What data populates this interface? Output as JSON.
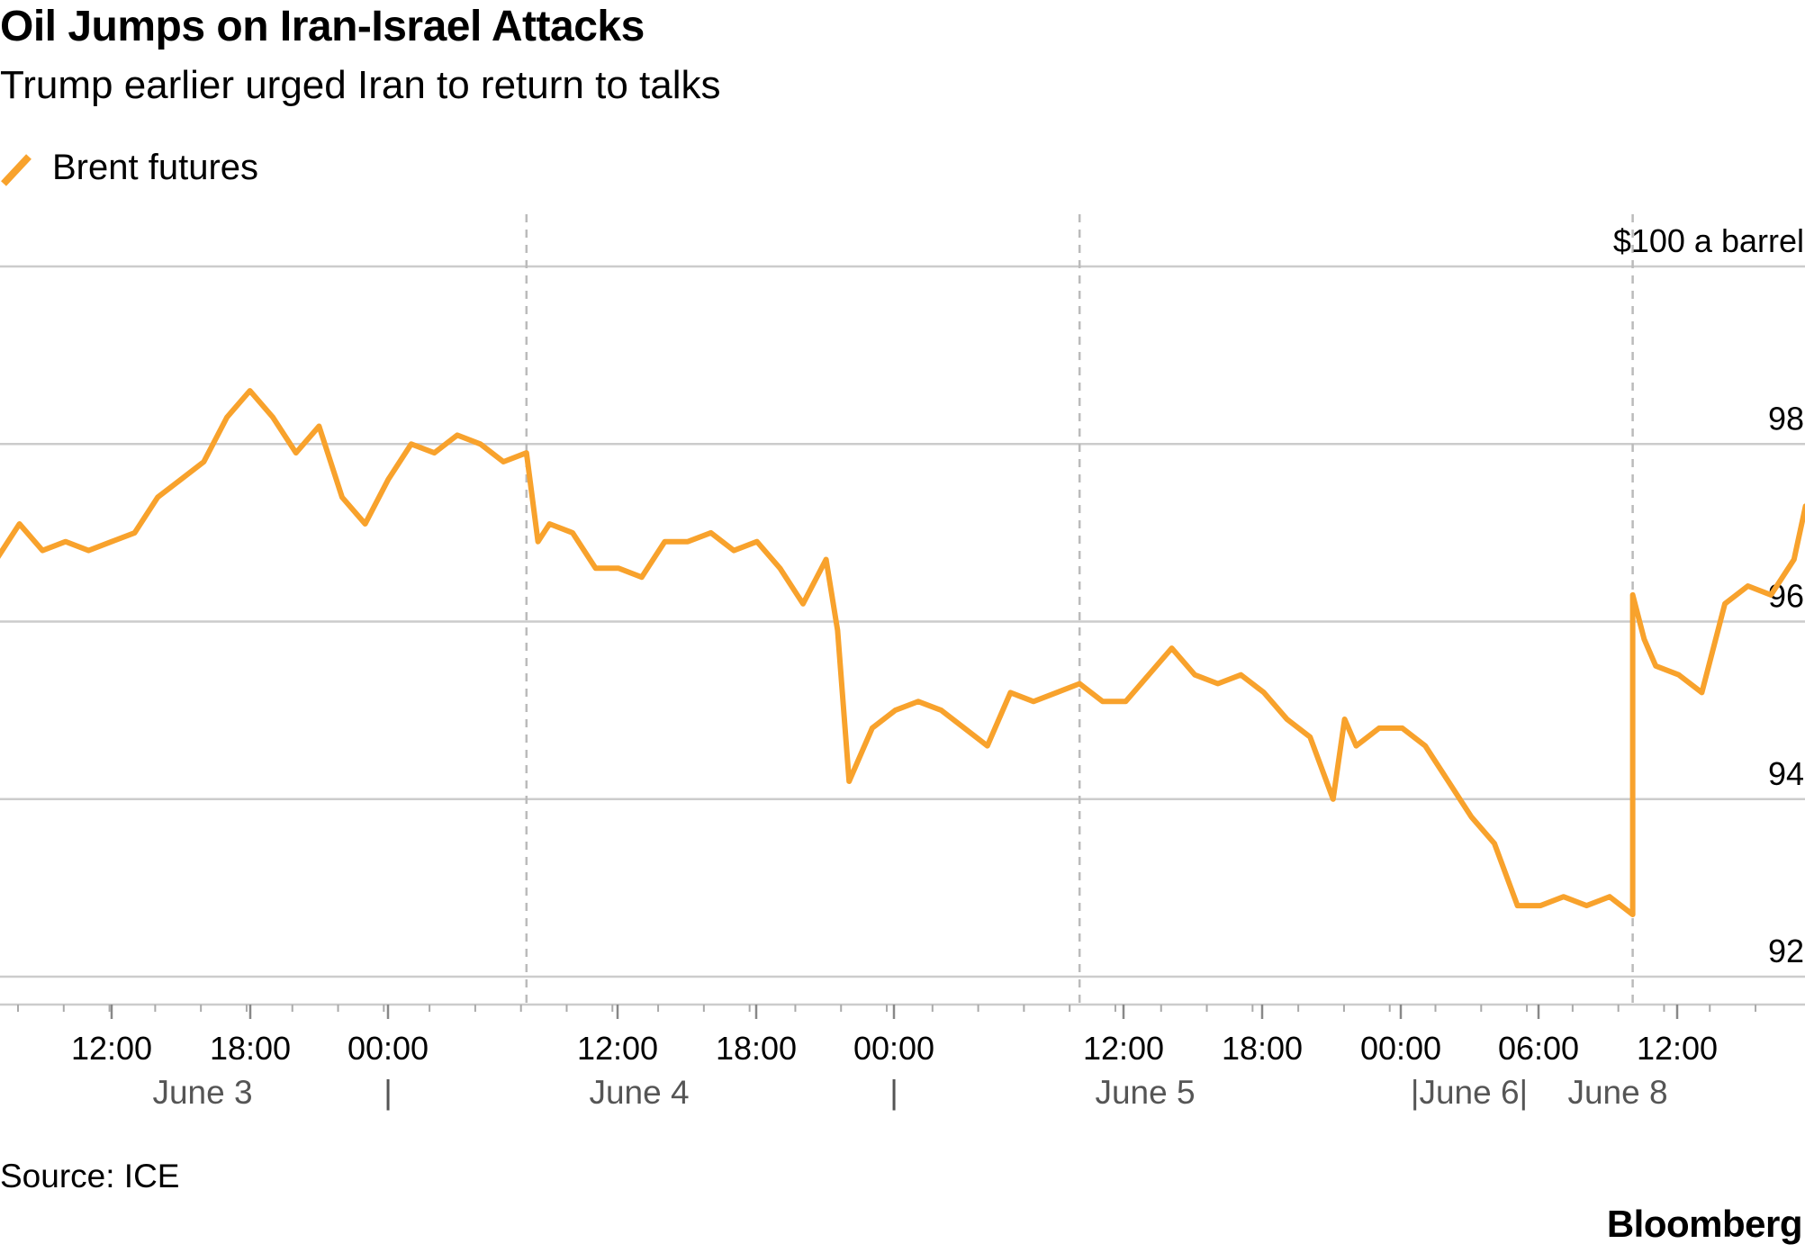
{
  "title": "Oil Jumps on Iran-Israel Attacks",
  "subtitle": "Trump earlier urged Iran to return to talks",
  "source": "Source: ICE",
  "brand": "Bloomberg",
  "colors": {
    "series": "#f8a22c",
    "grid": "#cccccc",
    "day_divider": "#bbbbbb",
    "date_label": "#555555",
    "text": "#000000"
  },
  "chart_data": {
    "type": "line",
    "series": [
      {
        "name": "Brent futures",
        "unit_label": "$100 a barrel",
        "points": [
          [
            "June 3 07:00",
            96.7
          ],
          [
            "June 3 08:00",
            97.1
          ],
          [
            "June 3 09:00",
            96.8
          ],
          [
            "June 3 10:00",
            96.9
          ],
          [
            "June 3 11:00",
            96.8
          ],
          [
            "June 3 12:00",
            96.9
          ],
          [
            "June 3 13:00",
            97.0
          ],
          [
            "June 3 14:00",
            97.4
          ],
          [
            "June 3 15:00",
            97.6
          ],
          [
            "June 3 16:00",
            97.8
          ],
          [
            "June 3 17:00",
            98.3
          ],
          [
            "June 3 18:00",
            98.6
          ],
          [
            "June 3 19:00",
            98.3
          ],
          [
            "June 3 20:00",
            97.9
          ],
          [
            "June 3 21:00",
            98.2
          ],
          [
            "June 3 22:00",
            97.4
          ],
          [
            "June 3 23:00",
            97.1
          ],
          [
            "June 4 00:00",
            97.6
          ],
          [
            "June 4 01:00",
            98.0
          ],
          [
            "June 4 02:00",
            97.9
          ],
          [
            "June 4 03:00",
            98.1
          ],
          [
            "June 4 04:00",
            98.0
          ],
          [
            "June 4 05:00",
            97.8
          ],
          [
            "June 4 06:00",
            97.9
          ],
          [
            "June 4 06:30",
            96.9
          ],
          [
            "June 4 07:00",
            97.1
          ],
          [
            "June 4 08:00",
            97.0
          ],
          [
            "June 4 09:00",
            96.6
          ],
          [
            "June 4 10:00",
            96.6
          ],
          [
            "June 4 11:00",
            96.5
          ],
          [
            "June 4 12:00",
            96.9
          ],
          [
            "June 4 13:00",
            96.9
          ],
          [
            "June 4 14:00",
            97.0
          ],
          [
            "June 4 15:00",
            96.8
          ],
          [
            "June 4 16:00",
            96.9
          ],
          [
            "June 4 17:00",
            96.6
          ],
          [
            "June 4 18:00",
            96.2
          ],
          [
            "June 4 19:00",
            96.7
          ],
          [
            "June 4 19:30",
            95.9
          ],
          [
            "June 4 20:00",
            94.2
          ],
          [
            "June 4 21:00",
            94.8
          ],
          [
            "June 4 22:00",
            95.0
          ],
          [
            "June 4 23:00",
            95.1
          ],
          [
            "June 5 00:00",
            95.0
          ],
          [
            "June 5 01:00",
            94.8
          ],
          [
            "June 5 02:00",
            94.6
          ],
          [
            "June 5 03:00",
            95.2
          ],
          [
            "June 5 04:00",
            95.1
          ],
          [
            "June 5 05:00",
            95.2
          ],
          [
            "June 5 06:00",
            95.3
          ],
          [
            "June 5 07:00",
            95.1
          ],
          [
            "June 5 08:00",
            95.1
          ],
          [
            "June 5 09:00",
            95.4
          ],
          [
            "June 5 10:00",
            95.7
          ],
          [
            "June 5 11:00",
            95.4
          ],
          [
            "June 5 12:00",
            95.3
          ],
          [
            "June 5 13:00",
            95.4
          ],
          [
            "June 5 14:00",
            95.2
          ],
          [
            "June 5 15:00",
            94.9
          ],
          [
            "June 5 16:00",
            94.7
          ],
          [
            "June 5 17:00",
            94.0
          ],
          [
            "June 5 17:30",
            94.9
          ],
          [
            "June 5 18:00",
            94.6
          ],
          [
            "June 5 19:00",
            94.8
          ],
          [
            "June 5 20:00",
            94.8
          ],
          [
            "June 5 21:00",
            94.6
          ],
          [
            "June 5 22:00",
            94.2
          ],
          [
            "June 5 23:00",
            93.8
          ],
          [
            "June 6 00:00",
            93.5
          ],
          [
            "June 6 01:00",
            92.8
          ],
          [
            "June 6 02:00",
            92.8
          ],
          [
            "June 6 03:00",
            92.9
          ],
          [
            "June 6 04:00",
            92.8
          ],
          [
            "June 6 05:00",
            92.9
          ],
          [
            "June 6 06:00",
            92.7
          ],
          [
            "June 8 06:00",
            96.3
          ],
          [
            "June 8 06:30",
            95.8
          ],
          [
            "June 8 07:00",
            95.5
          ],
          [
            "June 8 08:00",
            95.4
          ],
          [
            "June 8 09:00",
            95.2
          ],
          [
            "June 8 10:00",
            96.2
          ],
          [
            "June 8 11:00",
            96.4
          ],
          [
            "June 8 12:00",
            96.3
          ],
          [
            "June 8 13:00",
            96.7
          ],
          [
            "June 8 13:30",
            97.3
          ]
        ]
      }
    ],
    "x_tick_labels": [
      "12:00",
      "18:00",
      "00:00",
      "12:00",
      "18:00",
      "00:00",
      "12:00",
      "18:00",
      "00:00",
      "06:00",
      "12:00"
    ],
    "x_day_labels": [
      "June 3",
      "|",
      "June 4",
      "|",
      "June 5",
      "|June 6|",
      "June 8"
    ],
    "y_ticks": [
      92,
      94,
      96,
      98,
      100
    ],
    "y_tick_labels": [
      "92",
      "94",
      "96",
      "98",
      "$100 a barrel"
    ],
    "ylim": [
      92,
      100
    ],
    "grid": "horizontal",
    "y_axis_side": "right",
    "legend_position": "top-left",
    "xlabel": "",
    "ylabel": ""
  }
}
